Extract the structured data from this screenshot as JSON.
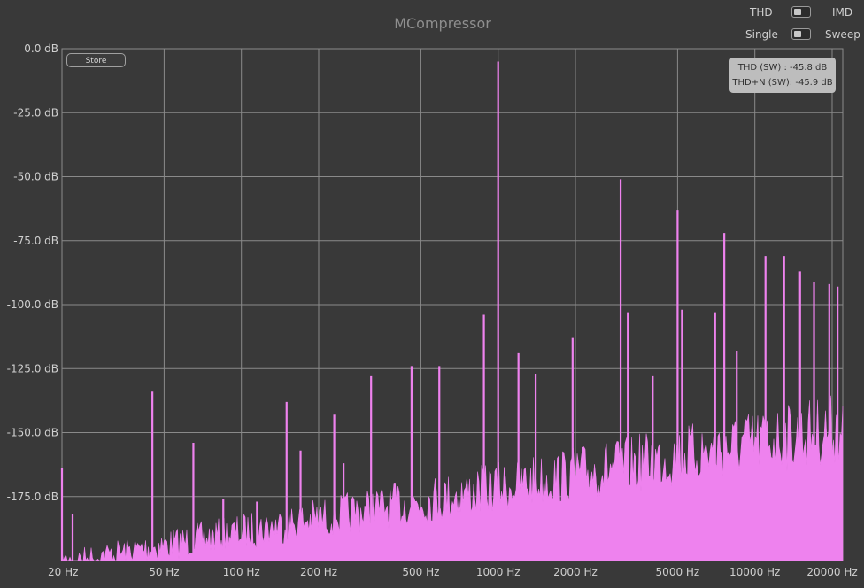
{
  "app": {
    "title": "MCompressor"
  },
  "controls": {
    "thd_label": "THD",
    "imd_label": "IMD",
    "single_label": "Single",
    "sweep_label": "Sweep"
  },
  "store_button": "Store",
  "readout": {
    "thd": "THD (SW) : -45.8 dB",
    "thd_n": "THD+N (SW): -45.9 dB"
  },
  "colors": {
    "background": "#393939",
    "grid": "#8a8a8a",
    "spectrum": "#ee82ee"
  },
  "chart_data": {
    "type": "line",
    "title": "",
    "xlabel": "",
    "ylabel": "",
    "x_scale": "log",
    "xlim": [
      20,
      22000
    ],
    "ylim": [
      -200,
      0
    ],
    "grid": true,
    "y_ticks": [
      {
        "value": 0,
        "label": "0.0 dB"
      },
      {
        "value": -25,
        "label": "-25.0 dB"
      },
      {
        "value": -50,
        "label": "-50.0 dB"
      },
      {
        "value": -75,
        "label": "-75.0 dB"
      },
      {
        "value": -100,
        "label": "-100.0 dB"
      },
      {
        "value": -125,
        "label": "-125.0 dB"
      },
      {
        "value": -150,
        "label": "-150.0 dB"
      },
      {
        "value": -175,
        "label": "-175.0 dB"
      }
    ],
    "x_ticks": [
      {
        "value": 20,
        "label": "20 Hz"
      },
      {
        "value": 50,
        "label": "50 Hz"
      },
      {
        "value": 100,
        "label": "100 Hz"
      },
      {
        "value": 200,
        "label": "200 Hz"
      },
      {
        "value": 500,
        "label": "500 Hz"
      },
      {
        "value": 1000,
        "label": "1000 Hz"
      },
      {
        "value": 2000,
        "label": "2000 Hz"
      },
      {
        "value": 5000,
        "label": "5000 Hz"
      },
      {
        "value": 10000,
        "label": "10000 Hz"
      },
      {
        "value": 20000,
        "label": "20000 Hz"
      }
    ],
    "peaks": [
      {
        "x": 20,
        "y": -164
      },
      {
        "x": 22,
        "y": -182
      },
      {
        "x": 45,
        "y": -134
      },
      {
        "x": 65,
        "y": -154
      },
      {
        "x": 85,
        "y": -176
      },
      {
        "x": 115,
        "y": -177
      },
      {
        "x": 150,
        "y": -138
      },
      {
        "x": 170,
        "y": -157
      },
      {
        "x": 230,
        "y": -143
      },
      {
        "x": 250,
        "y": -162
      },
      {
        "x": 320,
        "y": -128
      },
      {
        "x": 460,
        "y": -124
      },
      {
        "x": 590,
        "y": -124
      },
      {
        "x": 880,
        "y": -104
      },
      {
        "x": 1000,
        "y": -5
      },
      {
        "x": 1200,
        "y": -119
      },
      {
        "x": 1400,
        "y": -127
      },
      {
        "x": 1950,
        "y": -113
      },
      {
        "x": 3000,
        "y": -51
      },
      {
        "x": 3200,
        "y": -103
      },
      {
        "x": 4000,
        "y": -128
      },
      {
        "x": 5000,
        "y": -63
      },
      {
        "x": 5200,
        "y": -102
      },
      {
        "x": 7000,
        "y": -103
      },
      {
        "x": 7600,
        "y": -72
      },
      {
        "x": 8500,
        "y": -118
      },
      {
        "x": 11000,
        "y": -81
      },
      {
        "x": 13000,
        "y": -81
      },
      {
        "x": 15000,
        "y": -87
      },
      {
        "x": 17000,
        "y": -91
      },
      {
        "x": 19500,
        "y": -92
      },
      {
        "x": 21000,
        "y": -93
      }
    ]
  }
}
